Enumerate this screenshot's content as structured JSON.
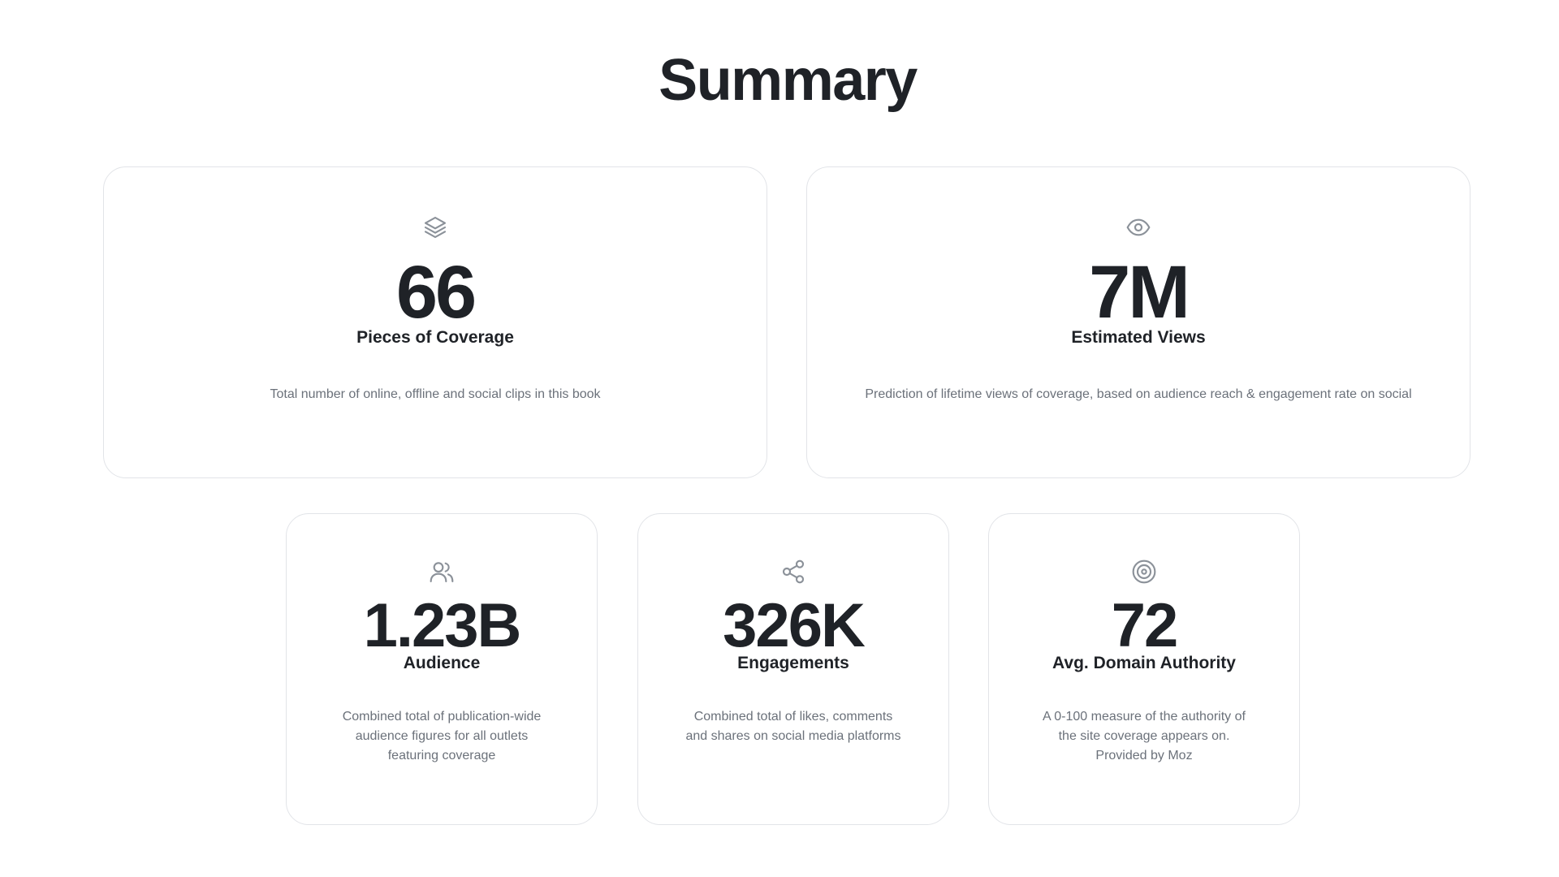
{
  "summary": {
    "title": "Summary"
  },
  "cards": {
    "coverage": {
      "icon": "layers-icon",
      "value": "66",
      "label": "Pieces of Coverage",
      "description": "Total number of online, offline and social clips in this book"
    },
    "views": {
      "icon": "eye-icon",
      "value": "7M",
      "label": "Estimated Views",
      "description": "Prediction of lifetime views of coverage, based on audience reach & engagement rate on social"
    },
    "audience": {
      "icon": "users-icon",
      "value": "1.23B",
      "label": "Audience",
      "description": "Combined total of publication-wide audience figures for all outlets featuring coverage"
    },
    "engagements": {
      "icon": "share-icon",
      "value": "326K",
      "label": "Engagements",
      "description": "Combined total of likes, comments and shares on social media platforms"
    },
    "authority": {
      "icon": "target-icon",
      "value": "72",
      "label": "Avg. Domain Authority",
      "description": "A 0-100 measure of the authority of the site coverage appears on. Provided by Moz"
    }
  },
  "colors": {
    "text_primary": "#1f2227",
    "text_secondary": "#6b717a",
    "icon": "#8b9199",
    "card_border": "#e2e4e8",
    "background": "#ffffff"
  }
}
